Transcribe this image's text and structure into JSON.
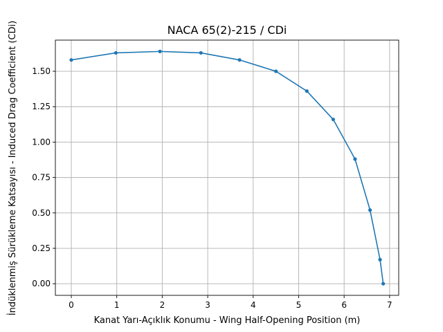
{
  "chart_data": {
    "type": "line",
    "title": "NACA 65(2)-215 / CDi",
    "xlabel": "Kanat Yarı-Açıklık Konumu - Wing Half-Opening Position (m)",
    "ylabel": "İndüklenmiş Sürükleme Katsayısı - Induced Drag Coefficient (CDi)",
    "xlim": [
      -0.35,
      7.2
    ],
    "ylim": [
      -0.082,
      1.72
    ],
    "x_ticks": [
      0,
      1,
      2,
      3,
      4,
      5,
      6,
      7
    ],
    "y_ticks": [
      0.0,
      0.25,
      0.5,
      0.75,
      1.0,
      1.25,
      1.5
    ],
    "x_tick_labels": [
      "0",
      "1",
      "2",
      "3",
      "4",
      "5",
      "6",
      "7"
    ],
    "y_tick_labels": [
      "0.00",
      "0.25",
      "0.50",
      "0.75",
      "1.00",
      "1.25",
      "1.50"
    ],
    "grid": true,
    "series": [
      {
        "color": "#1f77b4",
        "marker": "circle",
        "x": [
          0.0,
          0.98,
          1.95,
          2.85,
          3.7,
          4.5,
          5.18,
          5.76,
          6.24,
          6.57,
          6.79,
          6.86
        ],
        "y": [
          1.58,
          1.63,
          1.64,
          1.63,
          1.58,
          1.5,
          1.36,
          1.16,
          0.88,
          0.52,
          0.17,
          0.0
        ]
      }
    ]
  }
}
